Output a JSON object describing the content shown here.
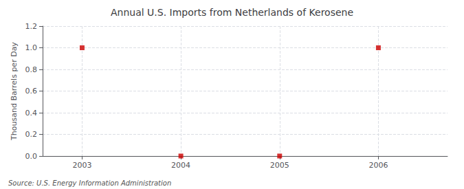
{
  "chart_data": {
    "type": "scatter",
    "title": "Annual U.S. Imports from Netherlands of Kerosene",
    "ylabel": "Thousand Barrels per Day",
    "annotations": [
      "Source: U.S. Energy Information Administration"
    ],
    "x": [
      2003,
      2004,
      2005,
      2006
    ],
    "values": [
      1.0,
      0.0,
      0.0,
      1.0
    ],
    "color": "#cc0000",
    "marker": "square",
    "xlim": [
      2002.6,
      2006.7
    ],
    "xticks": [
      2003,
      2004,
      2005,
      2006
    ],
    "ylim": [
      0.0,
      1.2
    ],
    "yticks": [
      {
        "value": 0.0,
        "label": "0.0"
      },
      0.2,
      0.4,
      0.6,
      0.8,
      {
        "value": 1.0,
        "label": "1.0"
      },
      1.2
    ],
    "grid": true
  }
}
